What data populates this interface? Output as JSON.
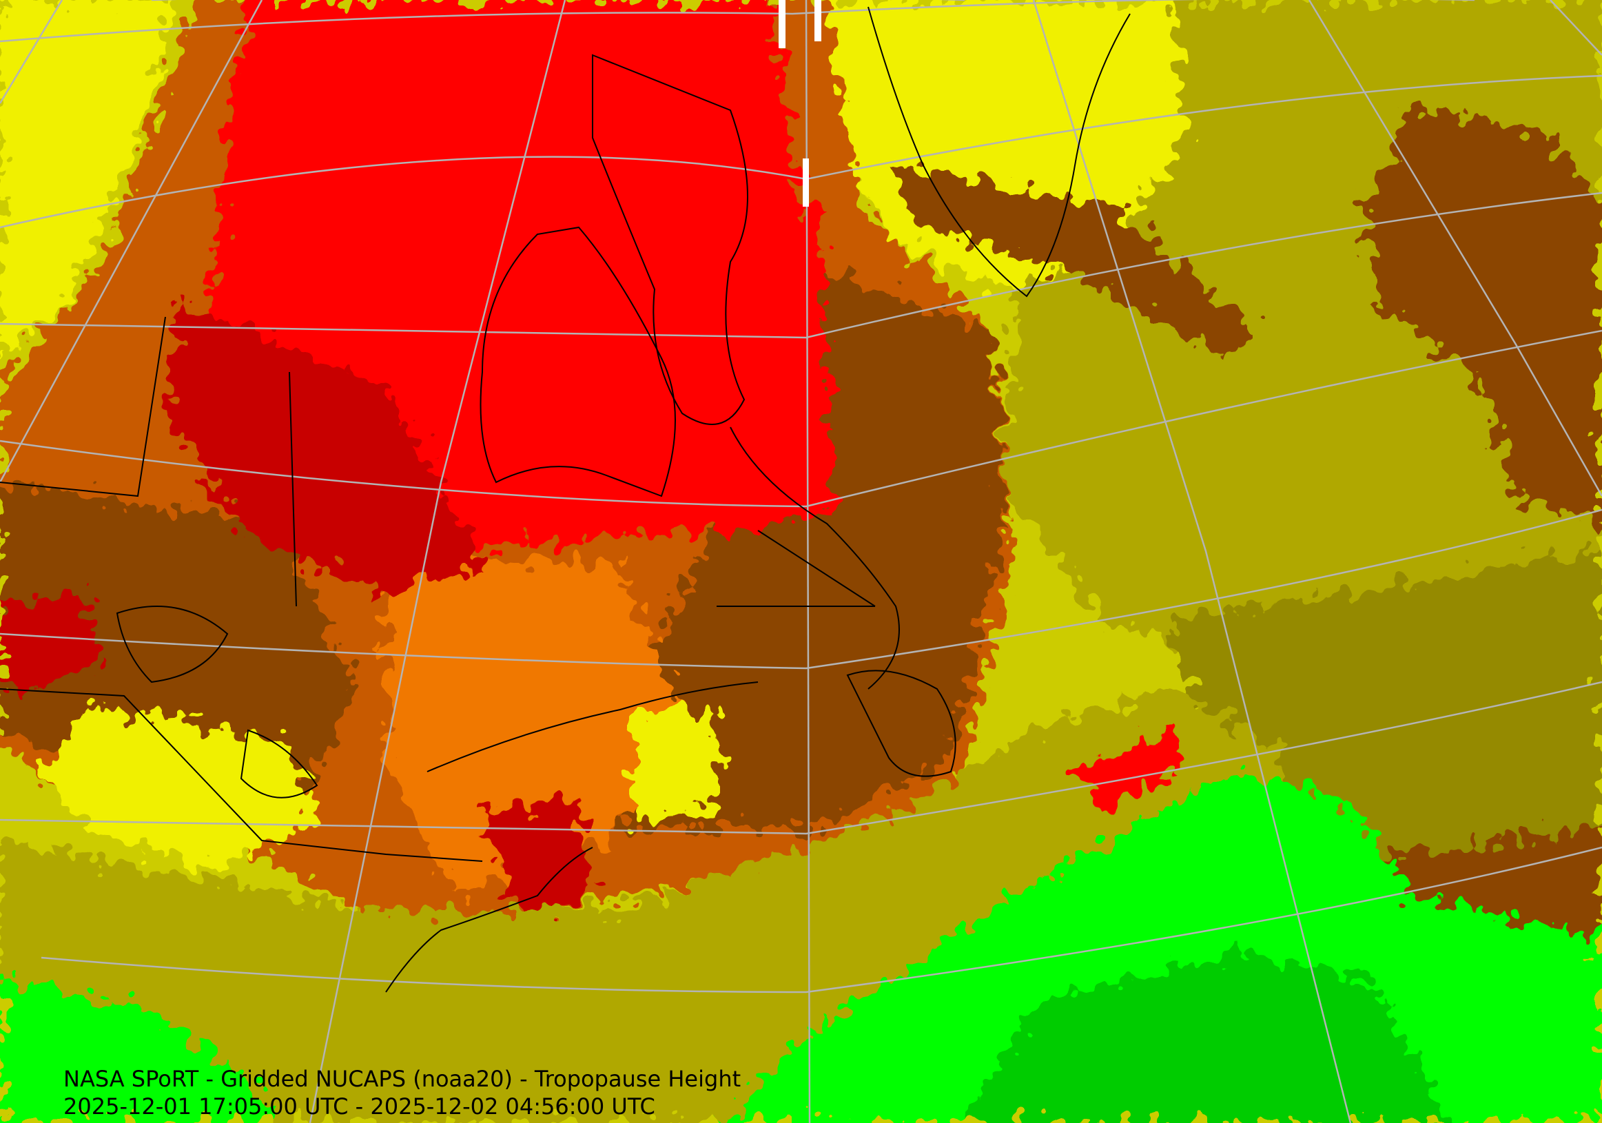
{
  "product": {
    "title": "NASA SPoRT - Gridded NUCAPS (noaa20) - Tropopause Height",
    "time_range": "2025-12-01 17:05:00 UTC - 2025-12-02 04:56:00 UTC"
  },
  "colors": {
    "red": "#ff0000",
    "dark_red": "#c80000",
    "orange": "#f07800",
    "dark_orange": "#c85a00",
    "brown": "#8b4500",
    "yellow": "#f0f000",
    "olive_light": "#cccc00",
    "olive": "#b0a800",
    "olive_dark": "#958a00",
    "green": "#00ff00",
    "green_mid": "#00cc00",
    "graticule": "#b4b4b4",
    "borders": "#000000"
  }
}
